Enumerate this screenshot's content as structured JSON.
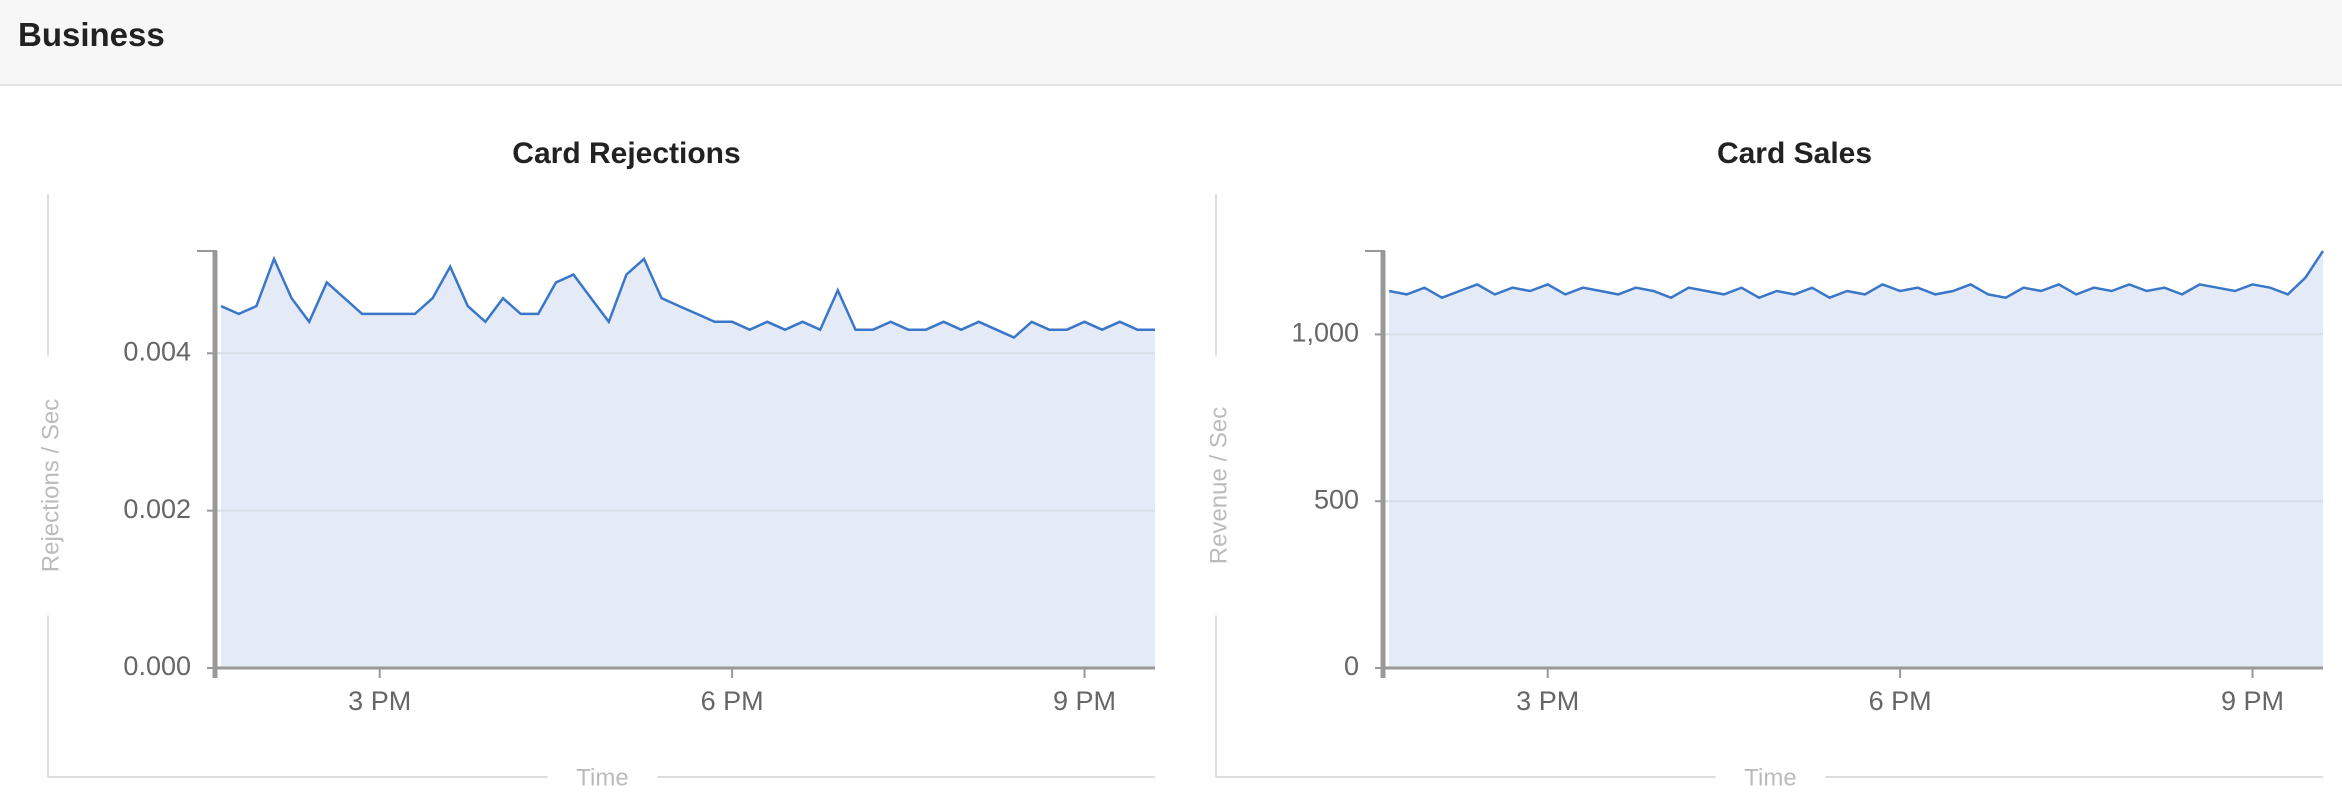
{
  "header": {
    "title": "Business"
  },
  "chart_data": [
    {
      "type": "area",
      "title": "Card Rejections",
      "x_label": "Time",
      "y_label": "Rejections / Sec",
      "x": [
        13.65,
        13.8,
        13.95,
        14.1,
        14.25,
        14.4,
        14.55,
        14.7,
        14.85,
        15,
        15.15,
        15.3,
        15.45,
        15.6,
        15.75,
        15.9,
        16.05,
        16.2,
        16.35,
        16.5,
        16.65,
        16.8,
        16.95,
        17.1,
        17.25,
        17.4,
        17.55,
        17.7,
        17.85,
        18,
        18.15,
        18.3,
        18.45,
        18.6,
        18.75,
        18.9,
        19.05,
        19.2,
        19.35,
        19.5,
        19.65,
        19.8,
        19.95,
        20.1,
        20.25,
        20.4,
        20.55,
        20.7,
        20.85,
        21,
        21.15,
        21.3,
        21.45,
        21.6
      ],
      "series": [
        {
          "name": "Rejections",
          "color": "#3a77c9",
          "values": [
            0.0046,
            0.0045,
            0.0046,
            0.0052,
            0.0047,
            0.0044,
            0.0049,
            0.0047,
            0.0045,
            0.0045,
            0.0045,
            0.0045,
            0.0047,
            0.0051,
            0.0046,
            0.0044,
            0.0047,
            0.0045,
            0.0045,
            0.0049,
            0.005,
            0.0047,
            0.0044,
            0.005,
            0.0052,
            0.0047,
            0.0046,
            0.0045,
            0.0044,
            0.0044,
            0.0043,
            0.0044,
            0.0043,
            0.0044,
            0.0043,
            0.0048,
            0.0043,
            0.0043,
            0.0044,
            0.0043,
            0.0043,
            0.0044,
            0.0043,
            0.0044,
            0.0043,
            0.0042,
            0.0044,
            0.0043,
            0.0043,
            0.0044,
            0.0043,
            0.0044,
            0.0043,
            0.0043
          ]
        }
      ],
      "xlim": [
        13.615,
        21.6
      ],
      "xticks": [
        {
          "value": 15,
          "label": "3 PM"
        },
        {
          "value": 18,
          "label": "6 PM"
        },
        {
          "value": 21,
          "label": "9 PM"
        }
      ],
      "ylim": [
        0,
        0.0053
      ],
      "yticks": [
        {
          "value": 0,
          "label": "0.000"
        },
        0.002,
        0.004
      ],
      "grid": true
    },
    {
      "type": "area",
      "title": "Card Sales",
      "x_label": "Time",
      "y_label": "Revenue / Sec",
      "x": [
        13.65,
        13.8,
        13.95,
        14.1,
        14.25,
        14.4,
        14.55,
        14.7,
        14.85,
        15,
        15.15,
        15.3,
        15.45,
        15.6,
        15.75,
        15.9,
        16.05,
        16.2,
        16.35,
        16.5,
        16.65,
        16.8,
        16.95,
        17.1,
        17.25,
        17.4,
        17.55,
        17.7,
        17.85,
        18,
        18.15,
        18.3,
        18.45,
        18.6,
        18.75,
        18.9,
        19.05,
        19.2,
        19.35,
        19.5,
        19.65,
        19.8,
        19.95,
        20.1,
        20.25,
        20.4,
        20.55,
        20.7,
        20.85,
        21,
        21.15,
        21.3,
        21.45,
        21.6
      ],
      "series": [
        {
          "name": "Revenue",
          "color": "#3a77c9",
          "values": [
            1130,
            1120,
            1140,
            1110,
            1130,
            1150,
            1120,
            1140,
            1130,
            1150,
            1120,
            1140,
            1130,
            1120,
            1140,
            1130,
            1110,
            1140,
            1130,
            1120,
            1140,
            1110,
            1130,
            1120,
            1140,
            1110,
            1130,
            1120,
            1150,
            1130,
            1140,
            1120,
            1130,
            1150,
            1120,
            1110,
            1140,
            1130,
            1150,
            1120,
            1140,
            1130,
            1150,
            1130,
            1140,
            1120,
            1150,
            1140,
            1130,
            1150,
            1140,
            1120,
            1170,
            1250
          ]
        }
      ],
      "xlim": [
        13.615,
        21.6
      ],
      "xticks": [
        {
          "value": 15,
          "label": "3 PM"
        },
        {
          "value": 18,
          "label": "6 PM"
        },
        {
          "value": 21,
          "label": "9 PM"
        }
      ],
      "ylim": [
        0,
        1250
      ],
      "yticks": [
        0,
        500,
        {
          "value": 1000,
          "label": "1,000"
        }
      ],
      "grid": true
    }
  ]
}
